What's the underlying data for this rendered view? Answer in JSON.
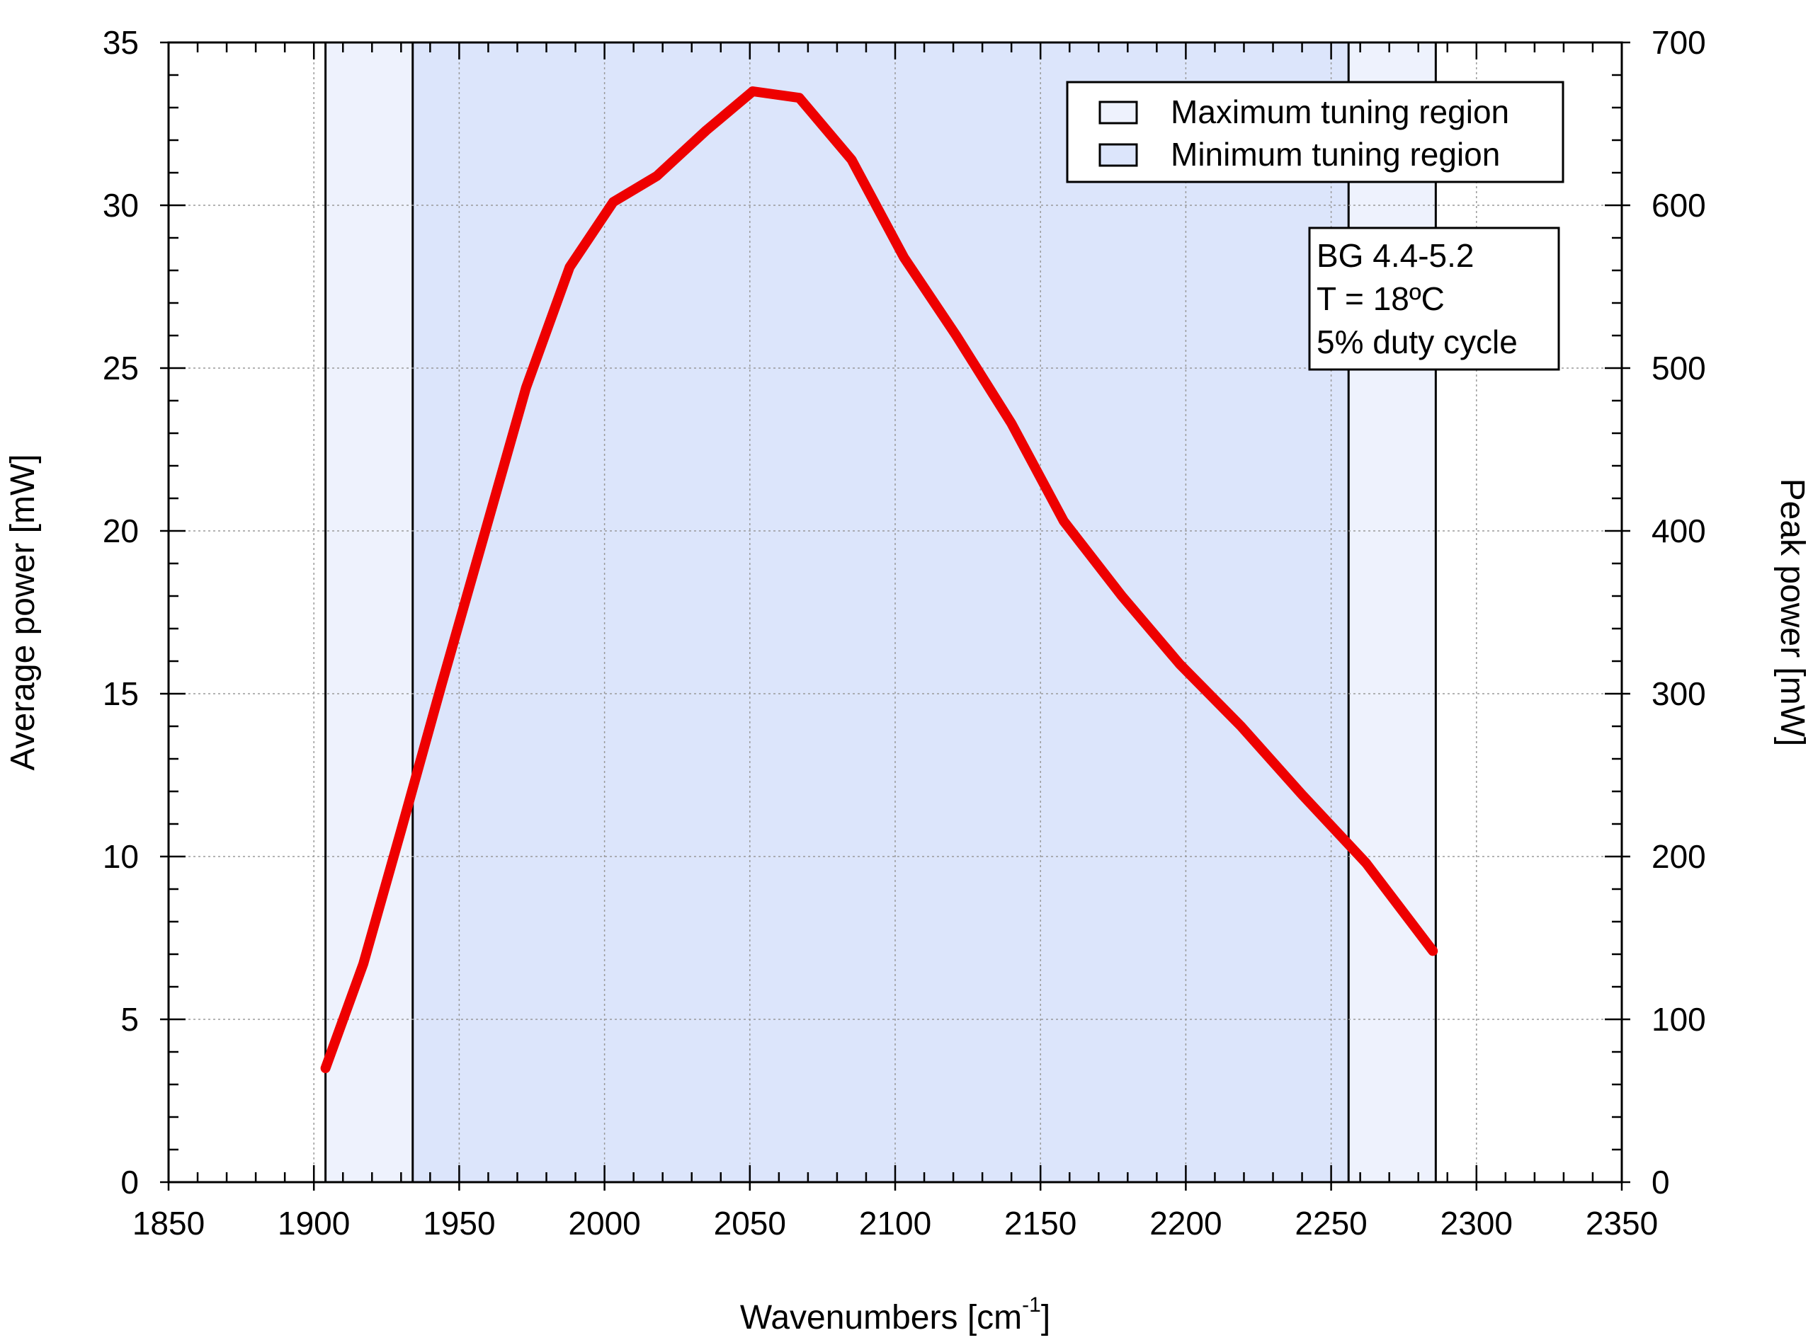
{
  "chart_data": {
    "type": "line",
    "title": "",
    "xlabel": "Wavenumbers [cm",
    "xlabel_superscript": "-1",
    "xlabel_suffix": "]",
    "ylabel": "Average power [mW]",
    "y2label": "Peak power [mW]",
    "xlim": [
      1850,
      2350
    ],
    "ylim": [
      0,
      35
    ],
    "y2lim": [
      0,
      700
    ],
    "xticks": [
      "1850",
      "1900",
      "1950",
      "2000",
      "2050",
      "2100",
      "2150",
      "2200",
      "2250",
      "2300",
      "2350"
    ],
    "yticks": [
      "0",
      "5",
      "10",
      "15",
      "20",
      "25",
      "30",
      "35"
    ],
    "y2ticks": [
      "0",
      "100",
      "200",
      "300",
      "400",
      "500",
      "600",
      "700"
    ],
    "grid": true,
    "series": [
      {
        "color": "#ee0000",
        "x": [
          1904,
          1917,
          1930,
          1944,
          1959,
          1973,
          1988,
          2003,
          2018,
          2035,
          2051,
          2067,
          2085,
          2103,
          2121,
          2140,
          2158,
          2178,
          2198,
          2219,
          2240,
          2262,
          2285
        ],
        "y": [
          3.5,
          6.7,
          10.8,
          15.3,
          20.0,
          24.4,
          28.1,
          30.1,
          30.9,
          32.3,
          33.5,
          33.3,
          31.4,
          28.4,
          26.0,
          23.3,
          20.3,
          18.0,
          15.9,
          14.0,
          11.9,
          9.8,
          7.1
        ]
      }
    ],
    "regions": [
      {
        "name": "Maximum tuning region",
        "x": [
          1904,
          2286
        ],
        "color": "#eef2fd"
      },
      {
        "name": "Minimum tuning region",
        "x": [
          1934,
          2256
        ],
        "color": "#dce5fb"
      }
    ],
    "legend": {
      "position": "top-right",
      "entries": [
        "Maximum tuning region",
        "Minimum tuning region"
      ]
    },
    "annotation": {
      "position": "upper-right",
      "lines": [
        "BG 4.4-5.2",
        "T = 18ºC",
        "5% duty cycle"
      ]
    }
  }
}
